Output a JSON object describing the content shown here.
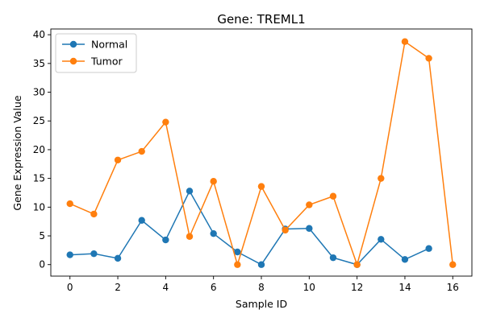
{
  "chart_data": {
    "type": "line",
    "title": "Gene: TREML1",
    "xlabel": "Sample ID",
    "ylabel": "Gene Expression Value",
    "xlim": [
      -0.8,
      16.8
    ],
    "ylim": [
      -2,
      41
    ],
    "xticks": [
      0,
      2,
      4,
      6,
      8,
      10,
      12,
      14,
      16
    ],
    "yticks": [
      0,
      5,
      10,
      15,
      20,
      25,
      30,
      35,
      40
    ],
    "grid": false,
    "legend_position": "top-left",
    "series": [
      {
        "name": "Normal",
        "color": "#1f77b4",
        "x": [
          0,
          1,
          2,
          3,
          4,
          5,
          6,
          7,
          8,
          9,
          10,
          11,
          12,
          13,
          14,
          15
        ],
        "values": [
          1.7,
          1.9,
          1.1,
          7.7,
          4.3,
          12.8,
          5.4,
          2.2,
          0.0,
          6.2,
          6.3,
          1.2,
          0.0,
          4.4,
          0.9,
          2.8
        ]
      },
      {
        "name": "Tumor",
        "color": "#ff7f0e",
        "x": [
          0,
          1,
          2,
          3,
          4,
          5,
          6,
          7,
          8,
          9,
          10,
          11,
          12,
          13,
          14,
          15,
          16
        ],
        "values": [
          10.6,
          8.8,
          18.2,
          19.7,
          24.8,
          4.9,
          14.5,
          0.0,
          13.6,
          6.0,
          10.4,
          11.9,
          0.0,
          15.0,
          38.8,
          35.9,
          0.0
        ]
      }
    ]
  }
}
